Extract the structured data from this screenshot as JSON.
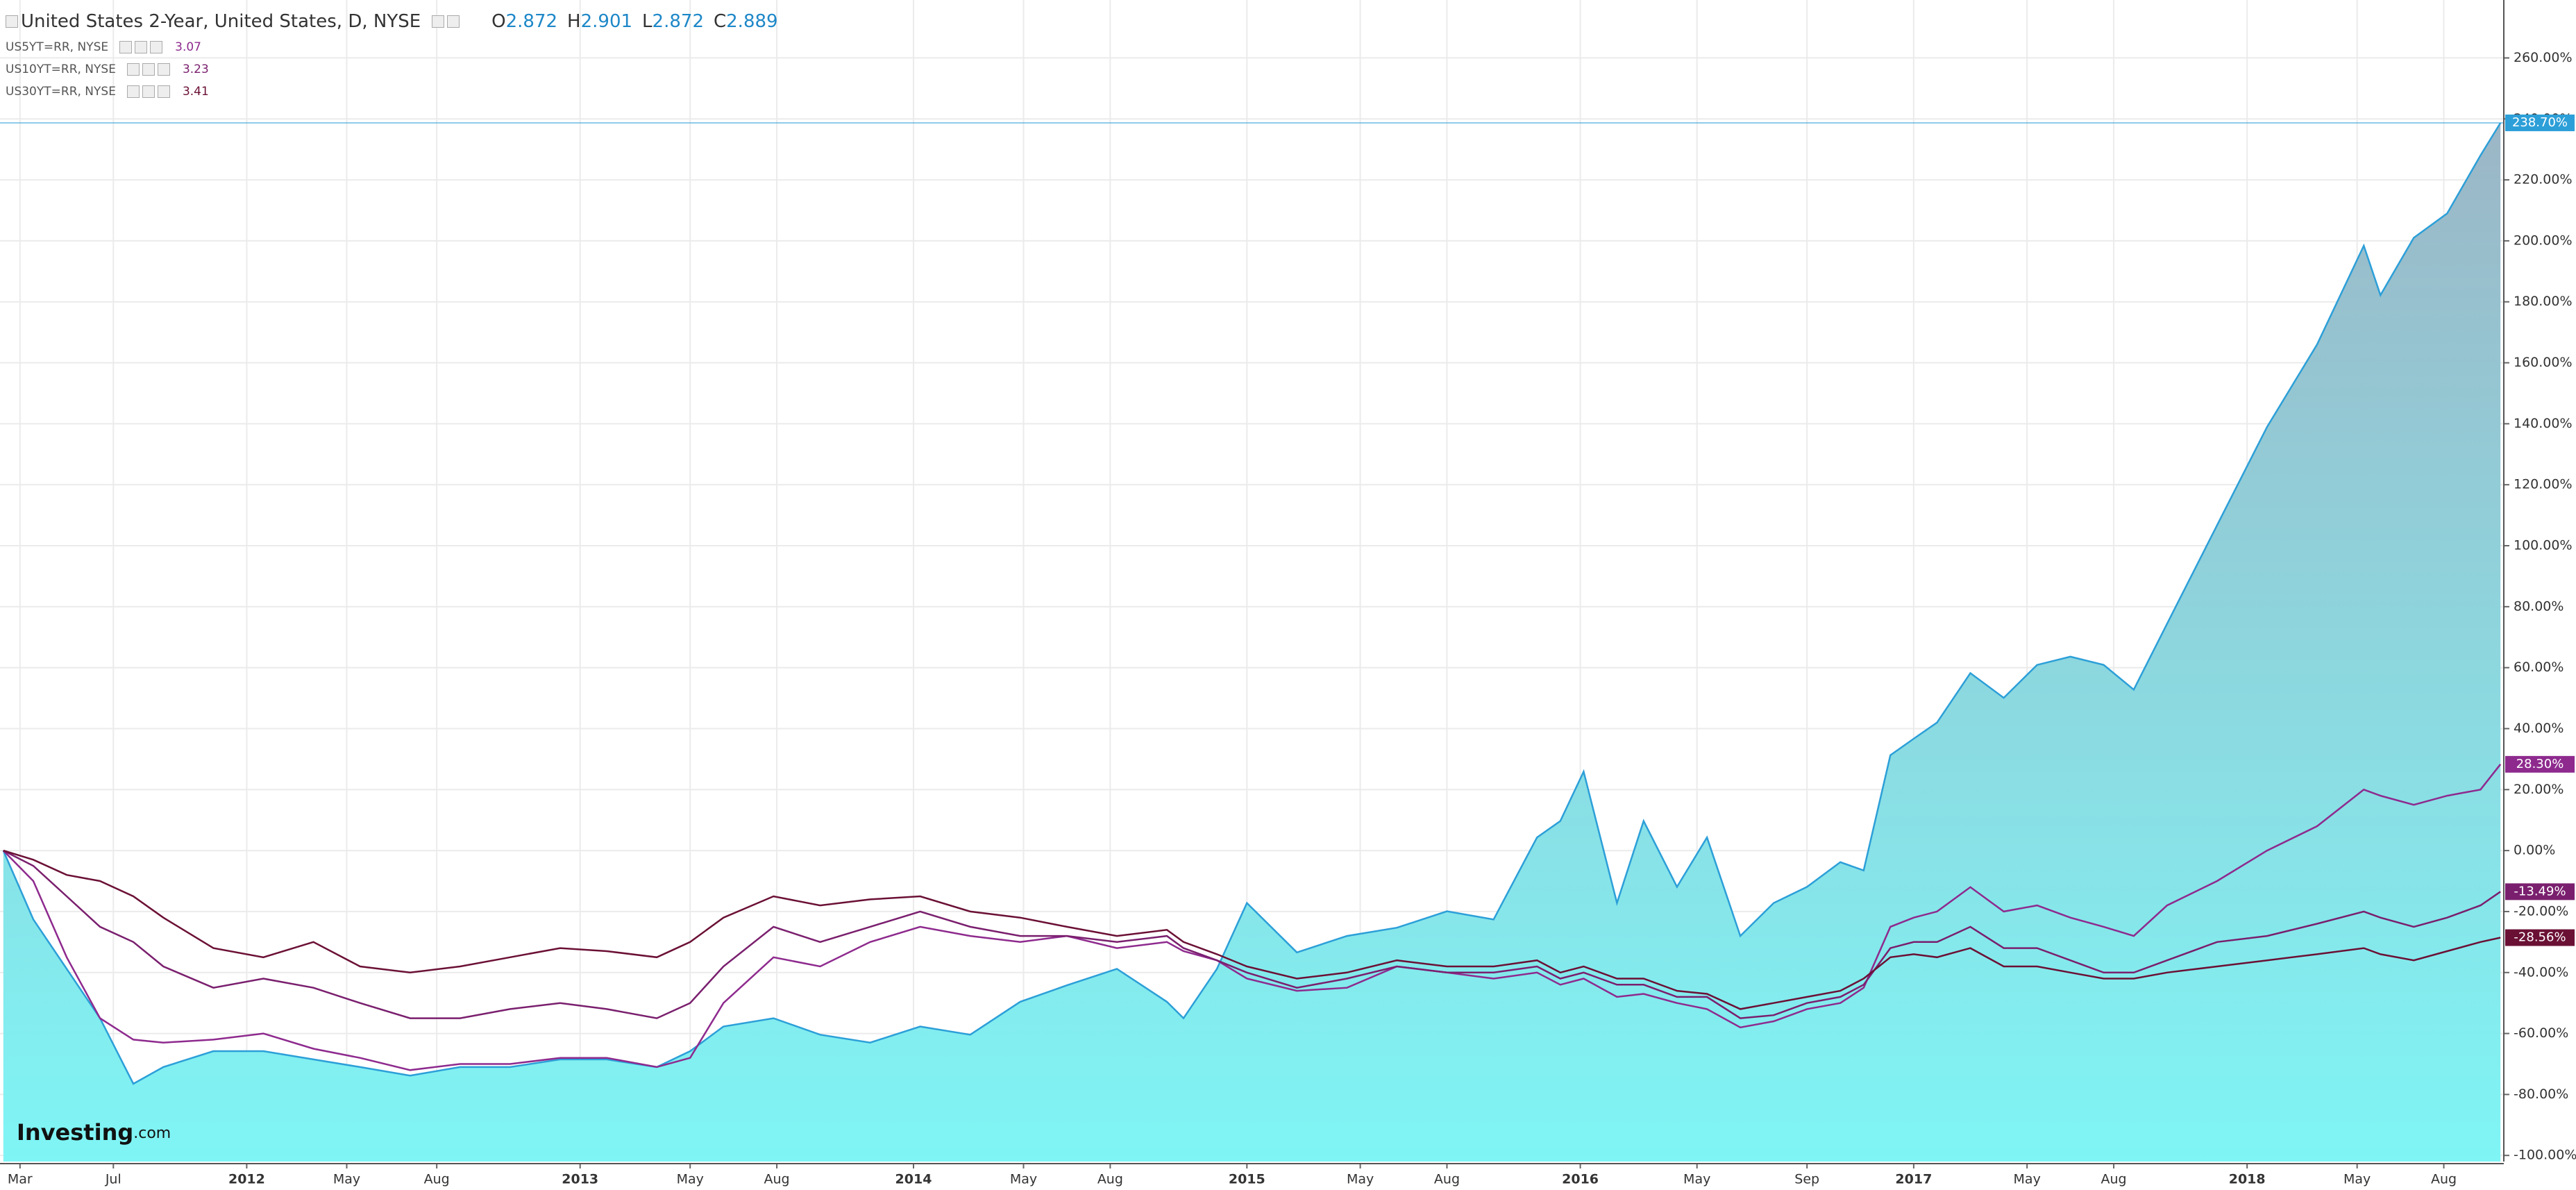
{
  "chart_data": {
    "type": "line",
    "title": "United States 2-Year, United States, D, NYSE",
    "ohlc": [
      {
        "name": "O",
        "value": 2.872
      },
      {
        "name": "H",
        "value": 2.901
      },
      {
        "name": "L",
        "value": 2.872
      },
      {
        "name": "C",
        "value": 2.889
      }
    ],
    "watermark": [
      "Investing",
      ".com"
    ],
    "x": [
      2011.27,
      2011.36,
      2011.46,
      2011.56,
      2011.66,
      2011.75,
      2011.9,
      2012.05,
      2012.2,
      2012.34,
      2012.49,
      2012.64,
      2012.79,
      2012.94,
      2013.08,
      2013.23,
      2013.33,
      2013.43,
      2013.58,
      2013.72,
      2013.87,
      2014.02,
      2014.17,
      2014.32,
      2014.46,
      2014.61,
      2014.76,
      2014.81,
      2014.91,
      2015.0,
      2015.15,
      2015.3,
      2015.45,
      2015.6,
      2015.74,
      2015.87,
      2015.94,
      2016.01,
      2016.11,
      2016.19,
      2016.29,
      2016.38,
      2016.48,
      2016.58,
      2016.68,
      2016.78,
      2016.85,
      2016.93,
      2017.0,
      2017.07,
      2017.17,
      2017.27,
      2017.37,
      2017.47,
      2017.57,
      2017.66,
      2017.76,
      2017.91,
      2018.06,
      2018.21,
      2018.35,
      2018.4,
      2018.5,
      2018.6,
      2018.7,
      2018.76
    ],
    "series": [
      {
        "type": "area",
        "color": "#2c9fd8",
        "fill_top": "#9cb6c6",
        "fill_bottom": "#7ff5f5",
        "end_label": {
          "value": 238.7,
          "label": "238.70%"
        },
        "values": [
          0,
          -22.6,
          -38.8,
          -55,
          -76.5,
          -71,
          -65.8,
          -65.8,
          -68.5,
          -71,
          -73.8,
          -71,
          -71,
          -68.5,
          -68.5,
          -71,
          -65.8,
          -57.7,
          -55,
          -60.4,
          -63,
          -57.7,
          -60.4,
          -49.6,
          -44.2,
          -38.8,
          -49.6,
          -55,
          -38.8,
          -17.2,
          -33.4,
          -28,
          -25.3,
          -19.9,
          -22.6,
          4.3,
          9.7,
          25.9,
          -17.2,
          9.7,
          -11.9,
          4.3,
          -28,
          -17.2,
          -11.9,
          -3.8,
          -6.5,
          31.3,
          36.7,
          42,
          58.2,
          50.1,
          60.9,
          63.6,
          60.9,
          52.8,
          74.4,
          106.7,
          139,
          166,
          198.4,
          182.2,
          201,
          209,
          228,
          238.7
        ]
      },
      {
        "name": "US5YT=RR, NYSE",
        "last": 3.07,
        "color": "#8e2a8e",
        "end_label": {
          "value": 28.3,
          "label": "28.30%"
        },
        "values": [
          0,
          -10,
          -35,
          -55,
          -62,
          -63,
          -62,
          -60,
          -65,
          -68,
          -72,
          -70,
          -70,
          -68,
          -68,
          -71,
          -68,
          -50,
          -35,
          -38,
          -30,
          -25,
          -28,
          -30,
          -28,
          -32,
          -30,
          -33,
          -36,
          -42,
          -46,
          -45,
          -38,
          -40,
          -42,
          -40,
          -44,
          -42,
          -48,
          -47,
          -50,
          -52,
          -58,
          -56,
          -52,
          -50,
          -45,
          -25,
          -22,
          -20,
          -12,
          -20,
          -18,
          -22,
          -25,
          -28,
          -18,
          -10,
          0,
          8,
          20,
          18,
          15,
          18,
          20,
          28.3
        ]
      },
      {
        "name": "US10YT=RR, NYSE",
        "last": 3.23,
        "color": "#7a1f6e",
        "end_label": {
          "value": -13.49,
          "label": "-13.49%"
        },
        "values": [
          0,
          -5,
          -15,
          -25,
          -30,
          -38,
          -45,
          -42,
          -45,
          -50,
          -55,
          -55,
          -52,
          -50,
          -52,
          -55,
          -50,
          -38,
          -25,
          -30,
          -25,
          -20,
          -25,
          -28,
          -28,
          -30,
          -28,
          -32,
          -36,
          -40,
          -45,
          -42,
          -38,
          -40,
          -40,
          -38,
          -42,
          -40,
          -44,
          -44,
          -48,
          -48,
          -55,
          -54,
          -50,
          -48,
          -44,
          -32,
          -30,
          -30,
          -25,
          -32,
          -32,
          -36,
          -40,
          -40,
          -36,
          -30,
          -28,
          -24,
          -20,
          -22,
          -25,
          -22,
          -18,
          -13.49
        ]
      },
      {
        "name": "US30YT=RR, NYSE",
        "last": 3.41,
        "color": "#6b1035",
        "end_label": {
          "value": -28.56,
          "label": "-28.56%"
        },
        "values": [
          0,
          -3,
          -8,
          -10,
          -15,
          -22,
          -32,
          -35,
          -30,
          -38,
          -40,
          -38,
          -35,
          -32,
          -33,
          -35,
          -30,
          -22,
          -15,
          -18,
          -16,
          -15,
          -20,
          -22,
          -25,
          -28,
          -26,
          -30,
          -34,
          -38,
          -42,
          -40,
          -36,
          -38,
          -38,
          -36,
          -40,
          -38,
          -42,
          -42,
          -46,
          -47,
          -52,
          -50,
          -48,
          -46,
          -42,
          -35,
          -34,
          -35,
          -32,
          -38,
          -38,
          -40,
          -42,
          -42,
          -40,
          -38,
          -36,
          -34,
          -32,
          -34,
          -36,
          -33,
          -30,
          -28.56
        ]
      }
    ],
    "xlim": [
      2011.26,
      2018.77
    ],
    "xticks": [
      {
        "value": 2011.32,
        "label": "Mar"
      },
      {
        "value": 2011.6,
        "label": "Jul"
      },
      2012,
      {
        "value": 2012.3,
        "label": "May"
      },
      {
        "value": 2012.57,
        "label": "Aug"
      },
      2013,
      {
        "value": 2013.33,
        "label": "May"
      },
      {
        "value": 2013.59,
        "label": "Aug"
      },
      2014,
      {
        "value": 2014.33,
        "label": "May"
      },
      {
        "value": 2014.59,
        "label": "Aug"
      },
      2015,
      {
        "value": 2015.34,
        "label": "May"
      },
      {
        "value": 2015.6,
        "label": "Aug"
      },
      2016,
      {
        "value": 2016.35,
        "label": "May"
      },
      {
        "value": 2016.68,
        "label": "Sep"
      },
      2017,
      {
        "value": 2017.34,
        "label": "May"
      },
      {
        "value": 2017.6,
        "label": "Aug"
      },
      2018,
      {
        "value": 2018.33,
        "label": "May"
      },
      {
        "value": 2018.59,
        "label": "Aug"
      }
    ],
    "ylim": [
      -102,
      279
    ],
    "yticks": [
      {
        "value": 260,
        "label": "260.00%"
      },
      {
        "value": 240,
        "label": "240.00%"
      },
      {
        "value": 220,
        "label": "220.00%"
      },
      {
        "value": 200,
        "label": "200.00%"
      },
      {
        "value": 180,
        "label": "180.00%"
      },
      {
        "value": 160,
        "label": "160.00%"
      },
      {
        "value": 140,
        "label": "140.00%"
      },
      {
        "value": 120,
        "label": "120.00%"
      },
      {
        "value": 100,
        "label": "100.00%"
      },
      {
        "value": 80,
        "label": "80.00%"
      },
      {
        "value": 60,
        "label": "60.00%"
      },
      {
        "value": 40,
        "label": "40.00%"
      },
      {
        "value": 20,
        "label": "20.00%"
      },
      {
        "value": 0,
        "label": "0.00%"
      },
      {
        "value": -20,
        "label": "-20.00%"
      },
      {
        "value": -40,
        "label": "-40.00%"
      },
      {
        "value": -60,
        "label": "-60.00%"
      },
      {
        "value": -80,
        "label": "-80.00%"
      },
      {
        "value": -100,
        "label": "-100.00%"
      }
    ],
    "grid": true
  }
}
